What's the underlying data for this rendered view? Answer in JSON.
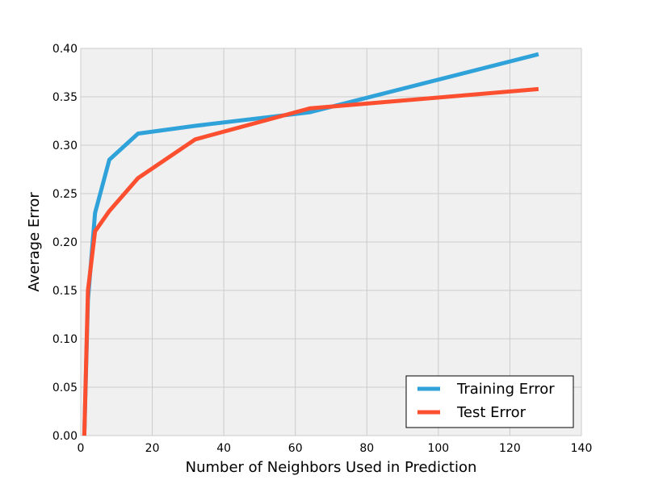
{
  "chart_data": {
    "type": "line",
    "xlabel": "Number of Neighbors Used in Prediction",
    "ylabel": "Average Error",
    "xlim": [
      0,
      140
    ],
    "ylim": [
      0.0,
      0.4
    ],
    "x_ticks": [
      "0",
      "20",
      "40",
      "60",
      "80",
      "100",
      "120",
      "140"
    ],
    "y_ticks": [
      "0.00",
      "0.05",
      "0.10",
      "0.15",
      "0.20",
      "0.25",
      "0.30",
      "0.35",
      "0.40"
    ],
    "grid": true,
    "legend_position": "bottom-right",
    "series": [
      {
        "name": "Training Error",
        "color": "#30a2da",
        "x": [
          1,
          2,
          4,
          8,
          16,
          32,
          64,
          128
        ],
        "y": [
          0.0,
          0.14,
          0.23,
          0.285,
          0.312,
          0.32,
          0.334,
          0.394
        ]
      },
      {
        "name": "Test Error",
        "color": "#fc4f30",
        "x": [
          1,
          2,
          4,
          8,
          16,
          32,
          64,
          128
        ],
        "y": [
          0.0,
          0.15,
          0.211,
          0.232,
          0.266,
          0.306,
          0.338,
          0.358
        ]
      }
    ]
  }
}
